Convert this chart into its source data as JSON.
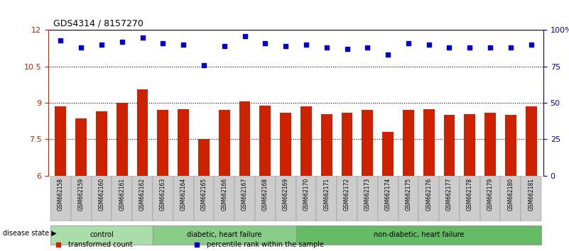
{
  "title": "GDS4314 / 8157270",
  "samples": [
    "GSM662158",
    "GSM662159",
    "GSM662160",
    "GSM662161",
    "GSM662162",
    "GSM662163",
    "GSM662164",
    "GSM662165",
    "GSM662166",
    "GSM662167",
    "GSM662168",
    "GSM662169",
    "GSM662170",
    "GSM662171",
    "GSM662172",
    "GSM662173",
    "GSM662174",
    "GSM662175",
    "GSM662176",
    "GSM662177",
    "GSM662178",
    "GSM662179",
    "GSM662180",
    "GSM662181"
  ],
  "bar_values": [
    8.85,
    8.35,
    8.65,
    9.0,
    9.55,
    8.7,
    8.75,
    7.5,
    8.7,
    9.05,
    8.9,
    8.6,
    8.85,
    8.55,
    8.6,
    8.7,
    7.8,
    8.7,
    8.75,
    8.5,
    8.55,
    8.6,
    8.5,
    8.85
  ],
  "dot_values": [
    93,
    88,
    90,
    92,
    95,
    91,
    90,
    76,
    89,
    96,
    91,
    89,
    90,
    88,
    87,
    88,
    83,
    91,
    90,
    88,
    88,
    88,
    88,
    90
  ],
  "bar_color": "#cc2200",
  "dot_color": "#0000cc",
  "ylim_left": [
    6,
    12
  ],
  "ylim_right": [
    0,
    100
  ],
  "yticks_left": [
    6,
    7.5,
    9,
    10.5,
    12
  ],
  "yticks_right": [
    0,
    25,
    50,
    75,
    100
  ],
  "ytick_labels_left": [
    "6",
    "7.5",
    "9",
    "10.5",
    "12"
  ],
  "ytick_labels_right": [
    "0",
    "25",
    "50",
    "75",
    "100%"
  ],
  "hlines": [
    7.5,
    9.0,
    10.5
  ],
  "groups": [
    {
      "label": "control",
      "start": 0,
      "end": 5,
      "color": "#aaddaa"
    },
    {
      "label": "diabetic, heart failure",
      "start": 5,
      "end": 12,
      "color": "#88cc88"
    },
    {
      "label": "non-diabetic, heart failure",
      "start": 12,
      "end": 24,
      "color": "#66bb66"
    }
  ],
  "legend_items": [
    {
      "label": "transformed count",
      "color": "#cc2200",
      "marker": "s"
    },
    {
      "label": "percentile rank within the sample",
      "color": "#0000cc",
      "marker": "s"
    }
  ],
  "disease_state_label": "disease state",
  "background_color": "#ffffff",
  "xticklabel_bg": "#dddddd",
  "group_bar_bottom": -0.85,
  "group_bar_height": 0.25
}
